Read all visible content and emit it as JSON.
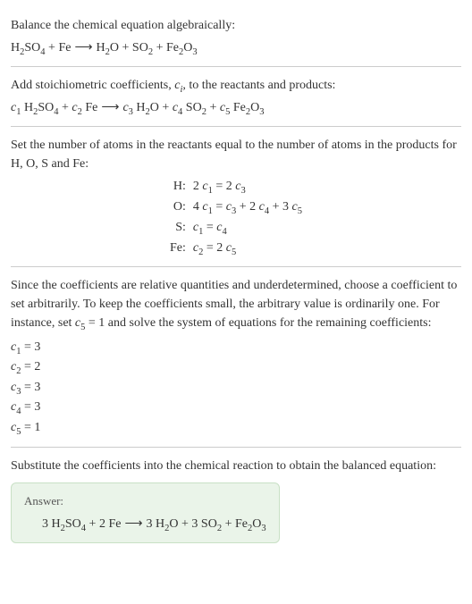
{
  "text_color": "#333333",
  "background_color": "#ffffff",
  "hr_color": "#cccccc",
  "font_family": "Georgia, serif",
  "font_size": 14,
  "section1": {
    "title": "Balance the chemical equation algebraically:",
    "equation_parts": {
      "r1": "H",
      "r1s1": "2",
      "r1m": "SO",
      "r1s2": "4",
      "plus1": " + ",
      "r2": "Fe",
      "arrow": " ⟶ ",
      "p1": "H",
      "p1s1": "2",
      "p1m": "O",
      "plus2": " + ",
      "p2": "SO",
      "p2s1": "2",
      "plus3": " + ",
      "p3": "Fe",
      "p3s1": "2",
      "p3m": "O",
      "p3s2": "3"
    }
  },
  "section2": {
    "title_a": "Add stoichiometric coefficients, ",
    "title_ci": "c",
    "title_i": "i",
    "title_b": ", to the reactants and products:",
    "c1": "c",
    "c1n": "1",
    "sp1": " ",
    "r1": "H",
    "r1s1": "2",
    "r1m": "SO",
    "r1s2": "4",
    "plus1": " + ",
    "c2": "c",
    "c2n": "2",
    "sp2": " ",
    "r2": "Fe",
    "arrow": " ⟶ ",
    "c3": "c",
    "c3n": "3",
    "sp3": " ",
    "p1": "H",
    "p1s1": "2",
    "p1m": "O",
    "plus2": " + ",
    "c4": "c",
    "c4n": "4",
    "sp4": " ",
    "p2": "SO",
    "p2s1": "2",
    "plus3": " + ",
    "c5": "c",
    "c5n": "5",
    "sp5": " ",
    "p3": "Fe",
    "p3s1": "2",
    "p3m": "O",
    "p3s2": "3"
  },
  "section3": {
    "title": "Set the number of atoms in the reactants equal to the number of atoms in the products for H, O, S and Fe:",
    "rows": [
      {
        "label": "H:",
        "lhs_num": "2 ",
        "lhs_c": "c",
        "lhs_cn": "1",
        "eq": " = ",
        "rhs_num": "2 ",
        "rhs_c": "c",
        "rhs_cn": "3"
      },
      {
        "label": "O:",
        "lhs_num": "4 ",
        "lhs_c": "c",
        "lhs_cn": "1",
        "eq": " = ",
        "t1c": "c",
        "t1n": "3",
        "p1": " + 2 ",
        "t2c": "c",
        "t2n": "4",
        "p2": " + 3 ",
        "t3c": "c",
        "t3n": "5"
      },
      {
        "label": "S:",
        "lhs_c": "c",
        "lhs_cn": "1",
        "eq": " = ",
        "rhs_c": "c",
        "rhs_cn": "4"
      },
      {
        "label": "Fe:",
        "lhs_c": "c",
        "lhs_cn": "2",
        "eq": " = ",
        "rhs_num": "2 ",
        "rhs_c": "c",
        "rhs_cn": "5"
      }
    ]
  },
  "section4": {
    "title_a": "Since the coefficients are relative quantities and underdetermined, choose a coefficient to set arbitrarily. To keep the coefficients small, the arbitrary value is ordinarily one. For instance, set ",
    "title_c": "c",
    "title_cn": "5",
    "title_b": " = 1 and solve the system of equations for the remaining coefficients:",
    "coeffs": [
      {
        "c": "c",
        "n": "1",
        "eq": " = 3"
      },
      {
        "c": "c",
        "n": "2",
        "eq": " = 2"
      },
      {
        "c": "c",
        "n": "3",
        "eq": " = 3"
      },
      {
        "c": "c",
        "n": "4",
        "eq": " = 3"
      },
      {
        "c": "c",
        "n": "5",
        "eq": " = 1"
      }
    ]
  },
  "section5": {
    "title": "Substitute the coefficients into the chemical reaction to obtain the balanced equation:"
  },
  "answer": {
    "label": "Answer:",
    "box_bg": "#eaf4e9",
    "box_border": "#c8e0c5",
    "n1": "3 ",
    "r1": "H",
    "r1s1": "2",
    "r1m": "SO",
    "r1s2": "4",
    "plus1": " + ",
    "n2": "2 ",
    "r2": "Fe",
    "arrow": " ⟶ ",
    "n3": "3 ",
    "p1": "H",
    "p1s1": "2",
    "p1m": "O",
    "plus2": " + ",
    "n4": "3 ",
    "p2": "SO",
    "p2s1": "2",
    "plus3": " + ",
    "p3": "Fe",
    "p3s1": "2",
    "p3m": "O",
    "p3s2": "3"
  }
}
